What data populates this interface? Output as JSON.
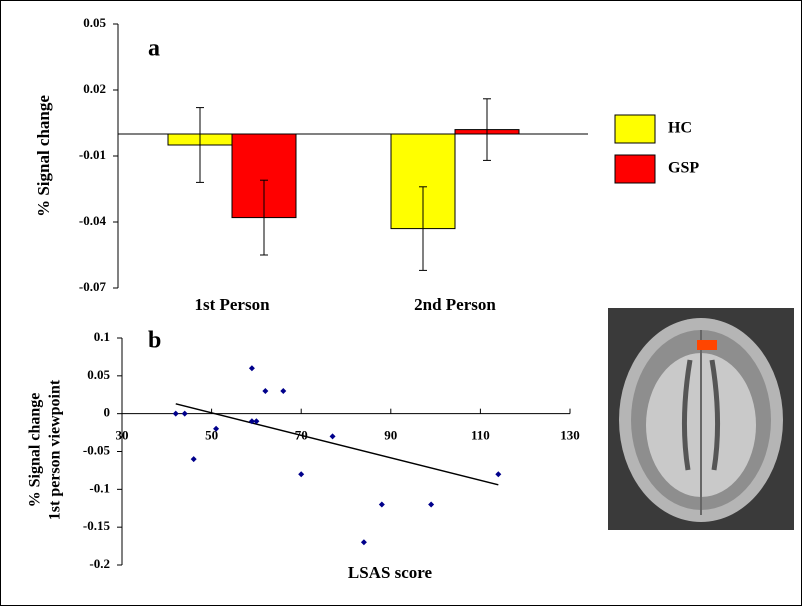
{
  "chart_data": [
    {
      "type": "bar",
      "panel_label": "a",
      "y_label": "% Signal change",
      "categories": [
        "1st Person",
        "2nd Person"
      ],
      "series": [
        {
          "name": "HC",
          "color": "#ffff00",
          "values": [
            -0.005,
            -0.043
          ],
          "errors": [
            0.017,
            0.019
          ]
        },
        {
          "name": "GSP",
          "color": "#ff0000",
          "values": [
            -0.038,
            0.002
          ],
          "errors": [
            0.017,
            0.014
          ]
        }
      ],
      "ylim": [
        -0.07,
        0.05
      ],
      "yticks": [
        0.05,
        0.02,
        -0.01,
        -0.04,
        -0.07
      ]
    },
    {
      "type": "scatter",
      "panel_label": "b",
      "y_label": [
        "% Signal change",
        "1st person viewpoint"
      ],
      "x_label": "LSAS score",
      "x": [
        42,
        44,
        46,
        51,
        59,
        59,
        60,
        62,
        66,
        70,
        77,
        84,
        88,
        99,
        114
      ],
      "values": [
        0,
        0,
        -0.06,
        -0.02,
        0.06,
        -0.01,
        -0.01,
        0.03,
        0.03,
        -0.08,
        -0.03,
        -0.17,
        -0.12,
        -0.12,
        -0.08
      ],
      "color": "#00008b",
      "trendline": {
        "x": [
          42,
          114
        ],
        "y": [
          0.013,
          -0.094
        ]
      },
      "xlim": [
        30,
        130
      ],
      "xticks": [
        30,
        50,
        70,
        90,
        110,
        130
      ],
      "ylim": [
        -0.2,
        0.1
      ],
      "yticks": [
        0.1,
        0.05,
        0,
        -0.05,
        -0.1,
        -0.15,
        -0.2
      ]
    }
  ]
}
